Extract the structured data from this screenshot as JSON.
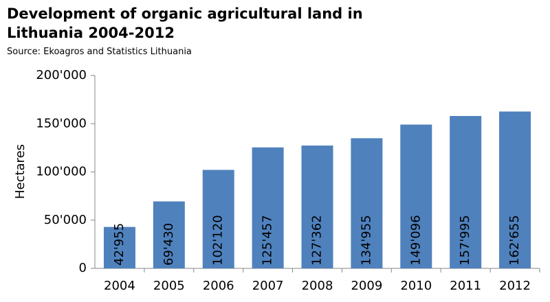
{
  "chart_data": {
    "type": "bar",
    "title": "Development of organic agricultural land in Lithuania 2004-2012",
    "subtitle": "Source: Ekoagros and Statistics Lithuania",
    "y_label": "Hectares",
    "categories": [
      "2004",
      "2005",
      "2006",
      "2007",
      "2008",
      "2009",
      "2010",
      "2011",
      "2012"
    ],
    "values": [
      42955,
      69430,
      102120,
      125457,
      127362,
      134955,
      149096,
      157995,
      162655
    ],
    "value_labels": [
      "42'955",
      "69'430",
      "102'120",
      "125'457",
      "127'362",
      "134'955",
      "149'096",
      "157'995",
      "162'655"
    ],
    "color": "#4f81bd",
    "ylim": [
      0,
      200000
    ],
    "yticks": [
      0,
      {
        "value": 50000,
        "label": "50'000"
      },
      {
        "value": 100000,
        "label": "100'000"
      },
      {
        "value": 150000,
        "label": "150'000"
      },
      {
        "value": 200000,
        "label": "200'000"
      }
    ],
    "grid": false
  }
}
